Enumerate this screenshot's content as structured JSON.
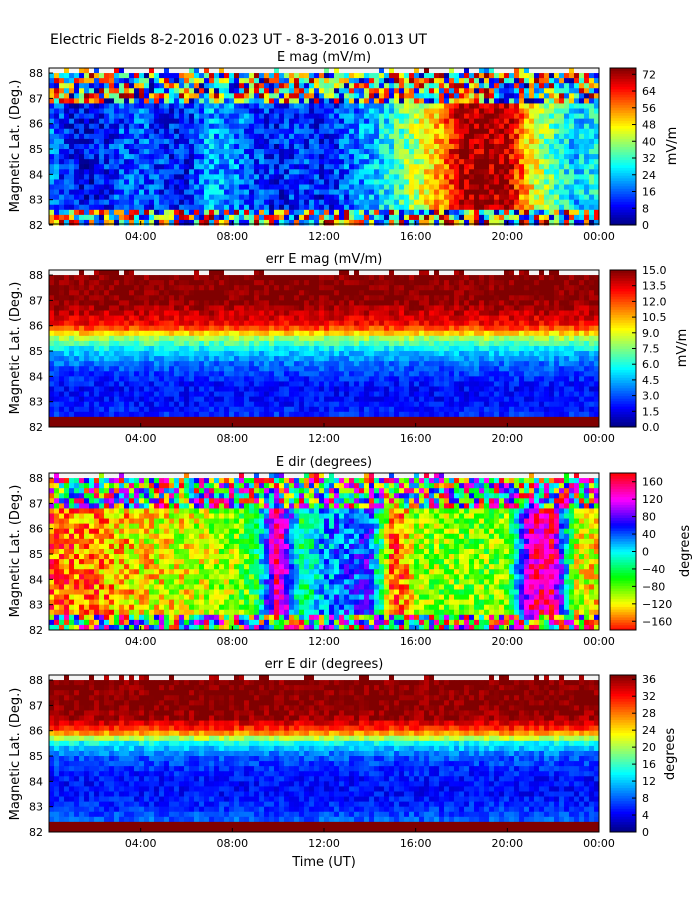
{
  "figure": {
    "suptitle": "Electric Fields 8-2-2016 0.023 UT - 8-3-2016 0.013 UT",
    "xlabel": "Time (UT)"
  },
  "colors": {
    "background": "#ffffff",
    "missing": "#f5f5f5",
    "saturated": "#800000"
  },
  "chart_data": [
    {
      "type": "heatmap",
      "title": "E mag (mV/m)",
      "ylabel": "Magnetic Lat. (Deg.)",
      "xlabel": "",
      "x_ticks": [
        "04:00",
        "08:00",
        "12:00",
        "16:00",
        "20:00",
        "00:00"
      ],
      "y_ticks": [
        "82",
        "83",
        "84",
        "85",
        "86",
        "87",
        "88"
      ],
      "ylim": [
        82,
        88.2
      ],
      "xlim_hours": [
        0,
        24
      ],
      "colormap": "jet",
      "colorbar": {
        "label": "mV/m",
        "range": [
          0,
          75
        ],
        "ticks": [
          "0",
          "8",
          "16",
          "24",
          "32",
          "40",
          "48",
          "56",
          "64",
          "72"
        ]
      },
      "time_profile_hours": [
        0,
        1,
        2,
        3,
        4,
        5,
        6,
        7,
        8,
        9,
        10,
        11,
        12,
        13,
        14,
        15,
        16,
        17,
        18,
        19,
        20,
        21,
        22,
        23,
        24
      ],
      "time_profile_values": [
        18,
        10,
        8,
        14,
        16,
        12,
        10,
        22,
        20,
        14,
        10,
        14,
        10,
        16,
        22,
        30,
        42,
        52,
        72,
        72,
        72,
        48,
        34,
        24,
        30
      ]
    },
    {
      "type": "heatmap",
      "title": "err E mag (mV/m)",
      "ylabel": "Magnetic Lat. (Deg.)",
      "xlabel": "",
      "x_ticks": [
        "04:00",
        "08:00",
        "12:00",
        "16:00",
        "20:00",
        "00:00"
      ],
      "y_ticks": [
        "82",
        "83",
        "84",
        "85",
        "86",
        "87",
        "88"
      ],
      "ylim": [
        82,
        88.2
      ],
      "xlim_hours": [
        0,
        24
      ],
      "colormap": "jet",
      "colorbar": {
        "label": "mV/m",
        "range": [
          0,
          15
        ],
        "ticks": [
          "0.0",
          "1.5",
          "3.0",
          "4.5",
          "6.0",
          "7.5",
          "9.0",
          "10.5",
          "12.0",
          "13.5",
          "15.0"
        ]
      },
      "lat_profile_deg": [
        82.0,
        82.5,
        83.0,
        83.5,
        84.0,
        84.5,
        85.0,
        85.5,
        86.0,
        86.5,
        87.0,
        87.5,
        88.2
      ],
      "lat_profile_values": [
        15,
        2.5,
        2.0,
        2.0,
        2.5,
        3.5,
        5.0,
        8.0,
        13.0,
        14.0,
        15.0,
        15.0,
        15.0
      ]
    },
    {
      "type": "heatmap",
      "title": "E dir (degrees)",
      "ylabel": "Magnetic Lat. (Deg.)",
      "xlabel": "",
      "x_ticks": [
        "04:00",
        "08:00",
        "12:00",
        "16:00",
        "20:00",
        "00:00"
      ],
      "y_ticks": [
        "82",
        "83",
        "84",
        "85",
        "86",
        "87",
        "88"
      ],
      "ylim": [
        82,
        88.2
      ],
      "xlim_hours": [
        0,
        24
      ],
      "colormap": "hsv",
      "colorbar": {
        "label": "degrees",
        "range": [
          -180,
          180
        ],
        "ticks": [
          "−160",
          "−120",
          "−80",
          "−40",
          "0",
          "40",
          "80",
          "120",
          "160"
        ]
      },
      "time_profile_hours": [
        0,
        2,
        4,
        6,
        8,
        9,
        10,
        11,
        12,
        13,
        14,
        15,
        15.5,
        16,
        18,
        20,
        21,
        22,
        23,
        24
      ],
      "time_profile_values": [
        -160,
        -150,
        -120,
        -110,
        -90,
        -60,
        160,
        -40,
        20,
        40,
        60,
        -160,
        -150,
        -90,
        -85,
        -80,
        140,
        150,
        -110,
        -120
      ]
    },
    {
      "type": "heatmap",
      "title": "err E dir (degrees)",
      "ylabel": "Magnetic Lat. (Deg.)",
      "xlabel": "Time (UT)",
      "x_ticks": [
        "04:00",
        "08:00",
        "12:00",
        "16:00",
        "20:00",
        "00:00"
      ],
      "y_ticks": [
        "82",
        "83",
        "84",
        "85",
        "86",
        "87",
        "88"
      ],
      "ylim": [
        82,
        88.2
      ],
      "xlim_hours": [
        0,
        24
      ],
      "colormap": "jet",
      "colorbar": {
        "label": "degrees",
        "range": [
          0,
          37
        ],
        "ticks": [
          "0",
          "4",
          "8",
          "12",
          "16",
          "20",
          "24",
          "28",
          "32",
          "36"
        ]
      },
      "lat_profile_deg": [
        82.0,
        82.5,
        83.0,
        83.5,
        84.0,
        84.5,
        85.0,
        85.5,
        86.0,
        86.5,
        87.0,
        87.5,
        88.2
      ],
      "lat_profile_values": [
        37,
        8,
        6,
        5,
        5,
        6,
        8,
        14,
        30,
        36,
        37,
        37,
        37
      ]
    }
  ]
}
